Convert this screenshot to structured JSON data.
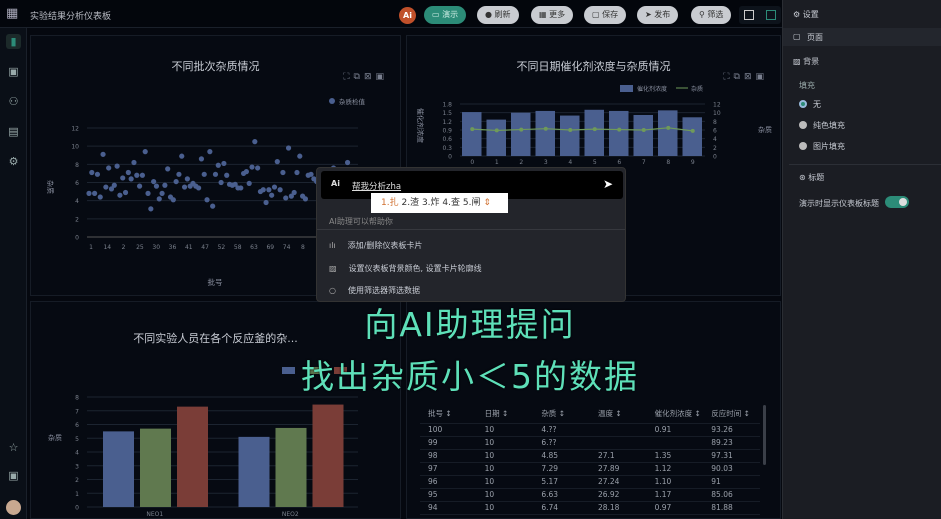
{
  "header": {
    "title": "实验结果分析仪表板",
    "ai_label": "Ai",
    "buttons": [
      "演示",
      "刷新",
      "更多",
      "保存",
      "发布",
      "筛选"
    ]
  },
  "settings": {
    "title": "设置",
    "page": "页面",
    "background": "背景",
    "fill": "填充",
    "fill_options": [
      "无",
      "纯色填充",
      "图片填充"
    ],
    "fill_selected": "无",
    "title_section": "标题",
    "show_title_label": "演示时显示仪表板标题",
    "show_title_on": true
  },
  "ai_popup": {
    "input_value": "帮我分析zha",
    "ime_candidates": [
      "1.扎",
      "2.渣",
      "3.炸",
      "4.查",
      "5.闸"
    ],
    "hint": "AI助理可以帮助你",
    "items": [
      {
        "icon": "bar-chart-icon",
        "label": "添加/删除仪表板卡片"
      },
      {
        "icon": "pattern-icon",
        "label": "设置仪表板背景颜色, 设置卡片轮廓线"
      },
      {
        "icon": "search-icon",
        "label": "使用筛选器筛选数据"
      }
    ]
  },
  "overlay": {
    "line1": "向AI助理提问",
    "line2": "找出杂质小＜5的数据"
  },
  "table": {
    "headers": [
      "批号 ↕",
      "日期 ↕",
      "杂质 ↕",
      "温度 ↕",
      "催化剂浓度 ↕",
      "反应时间 ↕"
    ],
    "rows": [
      [
        "100",
        "10",
        "4.??",
        "",
        "0.91",
        "93.26"
      ],
      [
        "99",
        "10",
        "6.??",
        "",
        "",
        "89.23"
      ],
      [
        "98",
        "10",
        "4.85",
        "27.1",
        "1.35",
        "97.31"
      ],
      [
        "97",
        "10",
        "7.29",
        "27.89",
        "1.12",
        "90.03"
      ],
      [
        "96",
        "10",
        "5.17",
        "27.24",
        "1.10",
        "91"
      ],
      [
        "95",
        "10",
        "6.63",
        "26.92",
        "1.17",
        "85.06"
      ],
      [
        "94",
        "10",
        "6.74",
        "28.18",
        "0.97",
        "81.88"
      ]
    ]
  },
  "colors": {
    "accent": "#2c8c78",
    "series_blue": "#4a5f8f",
    "series_green": "#60794f",
    "series_red": "#7a3d37",
    "overlay": "#5ee0b9"
  },
  "chart_data": [
    {
      "type": "scatter",
      "title": "不同批次杂质情况",
      "xlabel": "批号",
      "ylabel": "杂质",
      "legend": "杂质检值",
      "legend_position": "top-right",
      "ylim": [
        0,
        12
      ],
      "yticks": [
        "0",
        "2",
        "4",
        "6",
        "8",
        "10",
        "12"
      ],
      "xticks": [
        "1",
        "14",
        "2",
        "25",
        "30",
        "36",
        "41",
        "47",
        "52",
        "58",
        "63",
        "69",
        "74",
        "8"
      ],
      "values": [
        4.8,
        7.1,
        4.8,
        6.9,
        4.4,
        9.1,
        5.5,
        7.6,
        5.3,
        5.7,
        7.8,
        4.6,
        6.5,
        4.9,
        7.1,
        6.4,
        8.2,
        6.8,
        5.6,
        6.8,
        9.4,
        4.8,
        3.1,
        6.1,
        5.6,
        4.2,
        4.8,
        5.7,
        7.5,
        4.4,
        4.1,
        6.1,
        6.9,
        8.9,
        5.5,
        6.4,
        5.6,
        5.9,
        5.6,
        5.4,
        8.6,
        6.9,
        4.1,
        9.4,
        3.4,
        6.9,
        7.9,
        6.0,
        8.1,
        6.8,
        5.8,
        5.7,
        5.8,
        5.4,
        5.4,
        7.0,
        7.2,
        5.9,
        7.7,
        10.5,
        7.6,
        5.0,
        5.2,
        3.8,
        5.2,
        4.6,
        5.5,
        8.3,
        5.2,
        7.1,
        4.3,
        9.8,
        4.5,
        4.9,
        7.1,
        8.9,
        4.5,
        4.2,
        6.8,
        6.9,
        6.4,
        6.1,
        6.4,
        6.2,
        6.8,
        7.3,
        6.5,
        7.6,
        7.3,
        6.2,
        6.8,
        7.0,
        8.2,
        6.2,
        7.2,
        5.2
      ]
    },
    {
      "type": "bar",
      "title": "不同日期催化剂浓度与杂质情况",
      "ylabel": "催化剂浓度",
      "y2label": "杂质",
      "legend": [
        "催化剂浓度",
        "杂质"
      ],
      "legend_position": "top-right",
      "categories": [
        "0",
        "1",
        "2",
        "3",
        "4",
        "5",
        "6",
        "7",
        "8",
        "9"
      ],
      "ylim": [
        0,
        1.8
      ],
      "y2lim": [
        0,
        12
      ],
      "yticks": [
        "0",
        "0.3",
        "0.6",
        "0.9",
        "1.2",
        "1.5",
        "1.8"
      ],
      "y2ticks": [
        "0",
        "2",
        "4",
        "6",
        "8",
        "10",
        "12"
      ],
      "series": [
        {
          "type": "bar",
          "values": [
            1.52,
            1.26,
            1.5,
            1.56,
            1.4,
            1.6,
            1.56,
            1.42,
            1.58,
            1.34
          ]
        },
        {
          "type": "line",
          "axis": "right",
          "values": [
            6.2,
            5.9,
            6.1,
            6.3,
            6.0,
            6.2,
            6.1,
            6.0,
            6.5,
            5.8
          ]
        }
      ]
    },
    {
      "type": "bar",
      "title": "不同实验人员在各个反应釜的杂...",
      "ylabel": "杂质",
      "categories": [
        "NEO1",
        "NEO2"
      ],
      "ylim": [
        0,
        8
      ],
      "yticks": [
        "0",
        "1",
        "2",
        "3",
        "4",
        "5",
        "6",
        "7",
        "8"
      ],
      "series": [
        {
          "values": [
            5.5,
            5.1
          ]
        },
        {
          "values": [
            5.7,
            5.75
          ]
        },
        {
          "values": [
            7.3,
            7.45
          ]
        }
      ]
    }
  ]
}
